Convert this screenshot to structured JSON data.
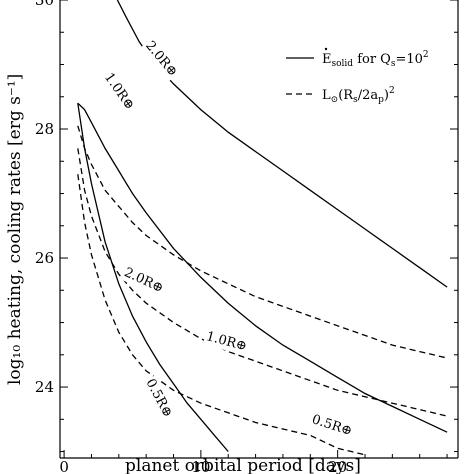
{
  "chart_data": {
    "type": "line",
    "title": "",
    "xlabel": "planet orbital period [days]",
    "ylabel": "log₁₀ heating, cooling rates [erg s⁻¹]",
    "xlim": [
      -0.3,
      28.8
    ],
    "ylim": [
      22.9,
      30.0
    ],
    "xticks": [
      0,
      10,
      20
    ],
    "yticks": [
      24,
      26,
      28,
      30
    ],
    "legend_position": "top-right",
    "legend": [
      {
        "style": "solid",
        "text": "Ė_solid for Q_s=10²",
        "main": "E",
        "sub": "solid",
        "mid": " for Q",
        "sub2": "s",
        "tail": "=10",
        "sup": "2"
      },
      {
        "style": "dashed",
        "text": "L⊙(R_s/2a_p)²",
        "main": "L",
        "sub": "⊙",
        "mid": "(R",
        "sub2": "s",
        "mid2": "/2a",
        "sub3": "p",
        "tail": ")",
        "sup": "2"
      }
    ],
    "series": [
      {
        "style": "solid",
        "label": "2.0R⊕",
        "label_x": 6.9,
        "label_y": 29.05,
        "label_rot": 50,
        "x": [
          3.9,
          4.5,
          5.5,
          6.5,
          8,
          10,
          12,
          14,
          16,
          18,
          20,
          22,
          24,
          26,
          28
        ],
        "y": [
          30.0,
          29.75,
          29.35,
          29.05,
          28.7,
          28.3,
          27.95,
          27.65,
          27.35,
          27.05,
          26.75,
          26.45,
          26.15,
          25.85,
          25.55
        ]
      },
      {
        "style": "solid",
        "label": "1.0R⊕",
        "label_x": 3.8,
        "label_y": 28.55,
        "label_rot": 55,
        "x": [
          1.0,
          1.5,
          2,
          3,
          4,
          5,
          6,
          8,
          10,
          12,
          14,
          16,
          18,
          20,
          22,
          24,
          26,
          28
        ],
        "y": [
          28.4,
          28.3,
          28.1,
          27.7,
          27.35,
          27.0,
          26.7,
          26.15,
          25.7,
          25.3,
          24.95,
          24.65,
          24.4,
          24.15,
          23.9,
          23.7,
          23.5,
          23.3
        ]
      },
      {
        "style": "solid",
        "label": "0.5R⊕",
        "label_x": 6.7,
        "label_y": 23.8,
        "label_rot": 62,
        "x": [
          1.0,
          1.5,
          2,
          3,
          4,
          5,
          6,
          7,
          8,
          9,
          10,
          11,
          12
        ],
        "y": [
          28.4,
          27.7,
          27.15,
          26.25,
          25.6,
          25.1,
          24.7,
          24.35,
          24.05,
          23.75,
          23.5,
          23.25,
          23.0
        ]
      },
      {
        "style": "dashed",
        "label": "2.0R⊕",
        "label_x": 5.7,
        "label_y": 25.6,
        "label_rot": 25,
        "x": [
          1.0,
          1.5,
          2,
          3,
          4,
          5,
          6,
          8,
          10,
          12,
          14,
          16,
          18,
          20,
          22,
          24,
          26,
          28
        ],
        "y": [
          28.05,
          27.7,
          27.45,
          27.05,
          26.8,
          26.55,
          26.35,
          26.05,
          25.8,
          25.6,
          25.4,
          25.25,
          25.1,
          24.95,
          24.8,
          24.65,
          24.55,
          24.45
        ]
      },
      {
        "style": "dashed",
        "label": "1.0R⊕",
        "label_x": 11.8,
        "label_y": 24.65,
        "label_rot": 15,
        "x": [
          1.0,
          1.5,
          2,
          3,
          4,
          5,
          6,
          8,
          10,
          12,
          14,
          16,
          18,
          20,
          22,
          24,
          26,
          28
        ],
        "y": [
          27.7,
          27.05,
          26.65,
          26.1,
          25.75,
          25.5,
          25.3,
          25.0,
          24.75,
          24.55,
          24.4,
          24.25,
          24.1,
          23.95,
          23.85,
          23.75,
          23.65,
          23.55
        ]
      },
      {
        "style": "dashed",
        "label": "0.5R⊕",
        "label_x": 19.5,
        "label_y": 23.35,
        "label_rot": 18,
        "x": [
          1.0,
          1.5,
          2,
          3,
          4,
          5,
          6,
          8,
          10,
          12,
          14,
          16,
          18,
          20,
          22
        ],
        "y": [
          27.3,
          26.55,
          26.05,
          25.35,
          24.85,
          24.5,
          24.25,
          23.95,
          23.75,
          23.6,
          23.45,
          23.35,
          23.25,
          23.05,
          22.95
        ]
      }
    ]
  }
}
